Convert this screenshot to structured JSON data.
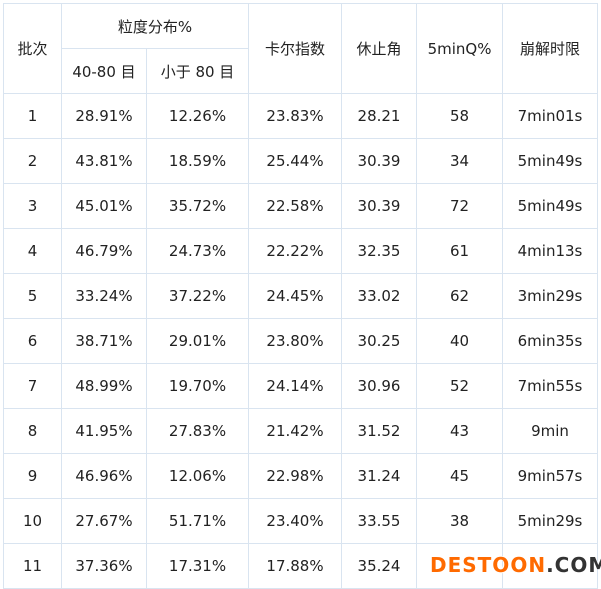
{
  "header": {
    "batch": "批次",
    "particle_group": "粒度分布%",
    "sub_40_80": "40-80 目",
    "sub_lt80": "小于 80 目",
    "carr_index": "卡尔指数",
    "repose_angle": "休止角",
    "q5min": "5minQ%",
    "disintegration": "崩解时限"
  },
  "rows": [
    [
      "1",
      "28.91%",
      "12.26%",
      "23.83%",
      "28.21",
      "58",
      "7min01s"
    ],
    [
      "2",
      "43.81%",
      "18.59%",
      "25.44%",
      "30.39",
      "34",
      "5min49s"
    ],
    [
      "3",
      "45.01%",
      "35.72%",
      "22.58%",
      "30.39",
      "72",
      "5min49s"
    ],
    [
      "4",
      "46.79%",
      "24.73%",
      "22.22%",
      "32.35",
      "61",
      "4min13s"
    ],
    [
      "5",
      "33.24%",
      "37.22%",
      "24.45%",
      "33.02",
      "62",
      "3min29s"
    ],
    [
      "6",
      "38.71%",
      "29.01%",
      "23.80%",
      "30.25",
      "40",
      "6min35s"
    ],
    [
      "7",
      "48.99%",
      "19.70%",
      "24.14%",
      "30.96",
      "52",
      "7min55s"
    ],
    [
      "8",
      "41.95%",
      "27.83%",
      "21.42%",
      "31.52",
      "43",
      "9min"
    ],
    [
      "9",
      "46.96%",
      "12.06%",
      "22.98%",
      "31.24",
      "45",
      "9min57s"
    ],
    [
      "10",
      "27.67%",
      "51.71%",
      "23.40%",
      "33.55",
      "38",
      "5min29s"
    ],
    [
      "11",
      "37.36%",
      "17.31%",
      "17.88%",
      "35.24",
      "",
      ""
    ]
  ],
  "watermark": {
    "part1": "DESTOON",
    "part2": ".COM"
  },
  "colors": {
    "border": "#d9e4f0",
    "watermark_orange": "#ff6a00"
  }
}
